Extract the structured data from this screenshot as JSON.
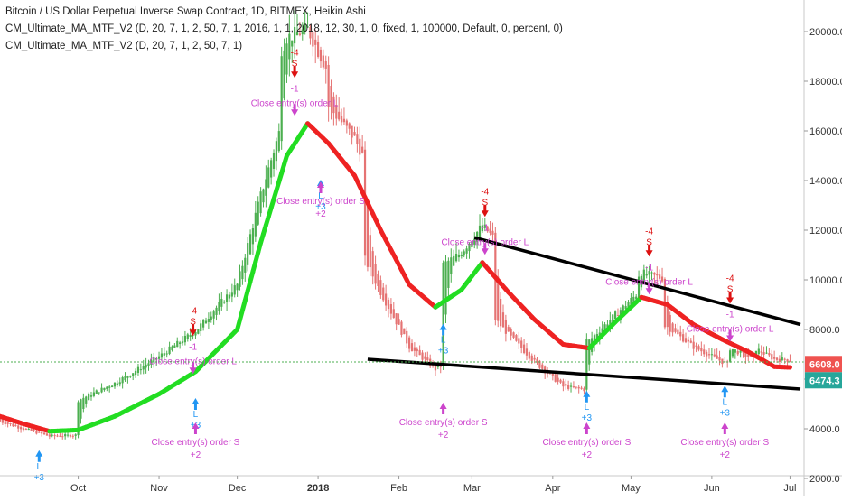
{
  "header": {
    "title": "Bitcoin / US Dollar Perpetual Inverse Swap Contract, 1D, BITMEX, Heikin Ashi",
    "indicator1": "CM_Ultimate_MA_MTF_V2 (D, 20, 7, 1, 2, 50, 7, 1, 2016, 1, 1, 2018, 12, 30, 1, 0, fixed, 1, 100000, Default, 0, percent, 0)",
    "indicator2": "CM_Ultimate_MA_MTF_V2 (D, 20, 7, 1, 2, 50, 7, 1)"
  },
  "price_axis": {
    "ticks": [
      "20000.0",
      "18000.0",
      "16000.0",
      "14000.0",
      "12000.0",
      "10000.0",
      "8000.0",
      "6000.0",
      "4000.0",
      "2000.0"
    ],
    "last_price": "6608.0",
    "last_price_color": "#ef5350",
    "ma_price": "6474.3",
    "ma_price_color": "#26a69a"
  },
  "time_axis": {
    "ticks": [
      "Oct",
      "Nov",
      "Dec",
      "2018",
      "Feb",
      "Mar",
      "Apr",
      "May",
      "Jun",
      "Jul"
    ]
  },
  "colors": {
    "up": "#4caf50",
    "down": "#e57373",
    "ma_up": "#22dd22",
    "ma_down": "#ee2222",
    "entry_long": "#2196f3",
    "close_entry": "#cc44cc",
    "short_signal": "#dd1111",
    "trendline": "#000000"
  },
  "signals": {
    "long_label": "L",
    "long_size": "+3",
    "short_label": "S",
    "short_size": "-4",
    "close_size_short": "-1",
    "close_size_long": "+2",
    "close_long_text": "Close entry(s) order L",
    "close_short_text": "Close entry(s) order S"
  },
  "chart_data": {
    "type": "line",
    "title": "Bitcoin / US Dollar Perpetual Inverse Swap Contract, 1D, BITMEX, Heikin Ashi",
    "ylim": [
      2000,
      21000
    ],
    "grid": false,
    "series": [
      {
        "name": "CM_Ultimate_MA_MTF_V2",
        "points": [
          [
            "2017-09-01",
            4500
          ],
          [
            "2017-09-10",
            4200
          ],
          [
            "2017-09-20",
            3900
          ],
          [
            "2017-10-01",
            3950
          ],
          [
            "2017-10-15",
            4500
          ],
          [
            "2017-11-01",
            5400
          ],
          [
            "2017-11-15",
            6300
          ],
          [
            "2017-12-01",
            8000
          ],
          [
            "2017-12-10",
            11500
          ],
          [
            "2017-12-20",
            15000
          ],
          [
            "2017-12-28",
            16300
          ],
          [
            "2018-01-05",
            15500
          ],
          [
            "2018-01-15",
            14200
          ],
          [
            "2018-01-25",
            12000
          ],
          [
            "2018-02-05",
            9800
          ],
          [
            "2018-02-15",
            8900
          ],
          [
            "2018-02-25",
            9600
          ],
          [
            "2018-03-05",
            10700
          ],
          [
            "2018-03-15",
            9500
          ],
          [
            "2018-03-25",
            8400
          ],
          [
            "2018-04-05",
            7400
          ],
          [
            "2018-04-15",
            7250
          ],
          [
            "2018-04-25",
            8300
          ],
          [
            "2018-05-05",
            9300
          ],
          [
            "2018-05-15",
            9000
          ],
          [
            "2018-05-25",
            8200
          ],
          [
            "2018-06-05",
            7600
          ],
          [
            "2018-06-15",
            7100
          ],
          [
            "2018-06-25",
            6500
          ],
          [
            "2018-07-01",
            6474.3
          ]
        ]
      }
    ],
    "trendlines": [
      {
        "from": [
          "2018-03-02",
          11700
        ],
        "to": [
          "2018-07-05",
          8200
        ]
      },
      {
        "from": [
          "2018-01-20",
          6800
        ],
        "to": [
          "2018-07-05",
          5600
        ]
      }
    ],
    "candles_summary": {
      "last_close": 6608.0,
      "peak": 20000,
      "peak_date": "2017-12-17"
    },
    "signals": [
      {
        "date": "2017-09-16",
        "type": "long",
        "price": 3900
      },
      {
        "date": "2017-11-14",
        "type": "short",
        "price": 6100
      },
      {
        "date": "2017-11-15",
        "type": "long",
        "price": 6000
      },
      {
        "date": "2017-12-23",
        "type": "short",
        "price": 16500
      },
      {
        "date": "2018-01-02",
        "type": "long",
        "price": 14800
      },
      {
        "date": "2018-02-18",
        "type": "long",
        "price": 9000
      },
      {
        "date": "2018-03-06",
        "type": "short",
        "price": 10900
      },
      {
        "date": "2018-04-14",
        "type": "long",
        "price": 6300
      },
      {
        "date": "2018-05-08",
        "type": "short",
        "price": 9300
      },
      {
        "date": "2018-06-06",
        "type": "long",
        "price": 6500
      },
      {
        "date": "2018-06-08",
        "type": "short",
        "price": 7400
      }
    ]
  }
}
